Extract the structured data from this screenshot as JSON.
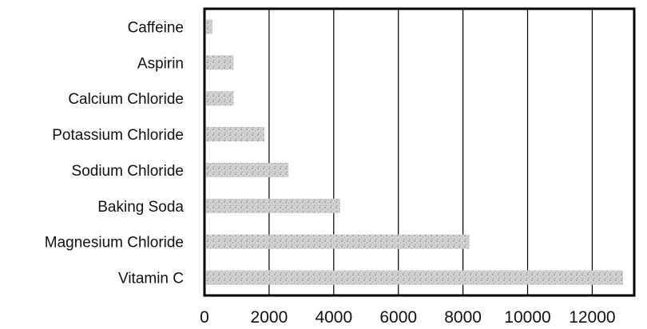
{
  "chart_data": {
    "type": "bar",
    "orientation": "horizontal",
    "categories": [
      "Caffeine",
      "Aspirin",
      "Calcium Chloride",
      "Potassium Chloride",
      "Sodium Chloride",
      "Baking Soda",
      "Magnesium Chloride",
      "Vitamin C"
    ],
    "values": [
      250,
      900,
      900,
      1850,
      2600,
      4200,
      8200,
      12950
    ],
    "xlim": [
      0,
      13300
    ],
    "xticks": [
      0,
      2000,
      4000,
      6000,
      8000,
      10000,
      12000
    ],
    "tick_labels": [
      "0",
      "2000",
      "4000",
      "6000",
      "8000",
      "10000",
      "12000"
    ],
    "title": "",
    "xlabel": "",
    "ylabel": "",
    "grid": "vertical",
    "legend": "none",
    "colors": {
      "bar": "#c9c9c9",
      "bar_texture": "#8f8f8f",
      "grid": "#000000",
      "frame": "#000000"
    }
  }
}
